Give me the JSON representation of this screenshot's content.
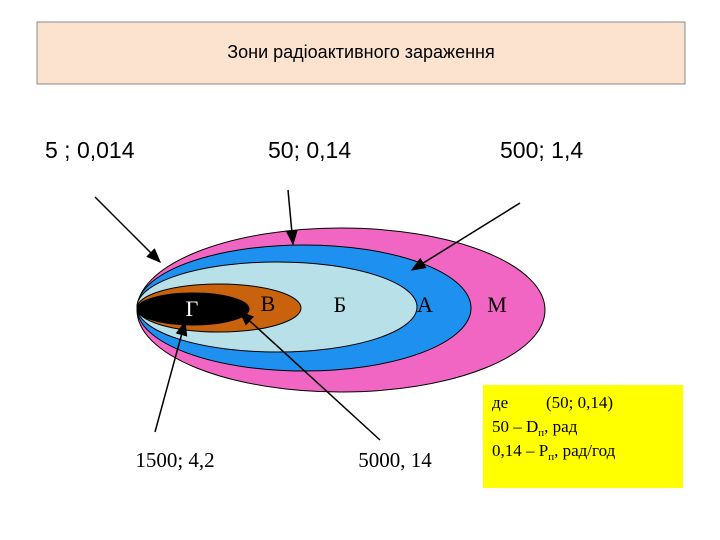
{
  "header": {
    "title": "Зони радіоактивного зараження"
  },
  "top_labels": [
    "5 ; 0,014",
    "50;  0,14",
    "500;  1,4"
  ],
  "zones": [
    {
      "label": "Г"
    },
    {
      "label": "В"
    },
    {
      "label": "Б"
    },
    {
      "label": "А"
    },
    {
      "label": "М"
    }
  ],
  "bottom_labels": [
    "1500; 4,2",
    "5000, 14"
  ],
  "note": {
    "line1": [
      "де",
      "(50; 0,14)"
    ],
    "line2": [
      "50 – D",
      "п",
      ", рад"
    ],
    "line3": [
      "0,14 – P",
      "п",
      ", рад/год"
    ]
  }
}
